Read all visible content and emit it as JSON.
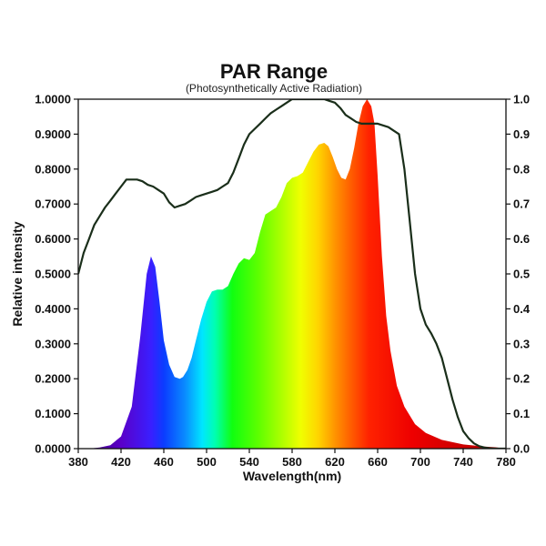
{
  "chart_data": {
    "type": "area",
    "title": "PAR Range",
    "subtitle": "(Photosynthetically Active Radiation)",
    "xlabel": "Wavelength(nm)",
    "ylabel": "Relative intensity",
    "xlim": [
      380,
      780
    ],
    "ylim": [
      0,
      1
    ],
    "grid": false,
    "x_ticks": [
      "380",
      "420",
      "460",
      "500",
      "540",
      "580",
      "620",
      "660",
      "700",
      "740",
      "780"
    ],
    "y_ticks_left": [
      "0.0000",
      "0.1000",
      "0.2000",
      "0.3000",
      "0.4000",
      "0.5000",
      "0.6000",
      "0.7000",
      "0.8000",
      "0.9000",
      "1.0000"
    ],
    "y_ticks_right": [
      "0.0",
      "0.1",
      "0.2",
      "0.3",
      "0.4",
      "0.5",
      "0.6",
      "0.7",
      "0.8",
      "0.9",
      "1.0"
    ],
    "series": [
      {
        "type": "area",
        "fill": "visible-spectrum",
        "x": [
          380,
          390,
          400,
          410,
          420,
          430,
          438,
          444,
          448,
          452,
          456,
          460,
          465,
          470,
          475,
          478,
          482,
          486,
          490,
          495,
          500,
          505,
          510,
          515,
          520,
          525,
          530,
          535,
          540,
          545,
          550,
          555,
          560,
          565,
          570,
          575,
          580,
          585,
          590,
          595,
          600,
          605,
          610,
          614,
          618,
          622,
          626,
          630,
          634,
          638,
          642,
          646,
          650,
          654,
          657,
          660,
          664,
          668,
          672,
          678,
          685,
          695,
          705,
          720,
          740,
          760,
          770,
          775,
          780
        ],
        "y": [
          0.0,
          0.0,
          0.003,
          0.01,
          0.035,
          0.12,
          0.32,
          0.5,
          0.55,
          0.52,
          0.42,
          0.31,
          0.24,
          0.205,
          0.2,
          0.205,
          0.225,
          0.26,
          0.31,
          0.37,
          0.42,
          0.45,
          0.455,
          0.455,
          0.465,
          0.5,
          0.53,
          0.545,
          0.54,
          0.56,
          0.62,
          0.67,
          0.68,
          0.69,
          0.72,
          0.76,
          0.775,
          0.78,
          0.79,
          0.82,
          0.85,
          0.87,
          0.875,
          0.865,
          0.835,
          0.8,
          0.775,
          0.77,
          0.8,
          0.86,
          0.93,
          0.98,
          1.0,
          0.98,
          0.93,
          0.78,
          0.55,
          0.38,
          0.28,
          0.18,
          0.12,
          0.07,
          0.045,
          0.025,
          0.012,
          0.006,
          0.004,
          0.002,
          0.0
        ]
      },
      {
        "type": "line",
        "color": "#1a2e1a",
        "x": [
          380,
          385,
          390,
          395,
          400,
          405,
          410,
          415,
          420,
          425,
          430,
          435,
          440,
          445,
          450,
          455,
          460,
          465,
          470,
          475,
          480,
          485,
          490,
          495,
          500,
          505,
          510,
          515,
          520,
          525,
          530,
          535,
          540,
          545,
          550,
          555,
          560,
          565,
          570,
          575,
          580,
          585,
          590,
          595,
          600,
          605,
          610,
          615,
          620,
          625,
          630,
          635,
          640,
          645,
          650,
          655,
          660,
          665,
          670,
          675,
          680,
          685,
          690,
          695,
          700,
          705,
          710,
          715,
          720,
          725,
          730,
          735,
          740,
          745,
          750,
          755,
          760,
          765,
          770,
          775,
          780
        ],
        "y": [
          0.5,
          0.56,
          0.6,
          0.64,
          0.665,
          0.69,
          0.71,
          0.73,
          0.75,
          0.77,
          0.77,
          0.77,
          0.765,
          0.755,
          0.75,
          0.74,
          0.73,
          0.705,
          0.69,
          0.695,
          0.7,
          0.71,
          0.72,
          0.725,
          0.73,
          0.735,
          0.74,
          0.75,
          0.76,
          0.79,
          0.83,
          0.87,
          0.9,
          0.915,
          0.93,
          0.945,
          0.96,
          0.97,
          0.98,
          0.99,
          1.0,
          1.0,
          1.0,
          1.0,
          1.0,
          1.0,
          1.0,
          0.995,
          0.99,
          0.975,
          0.955,
          0.945,
          0.935,
          0.93,
          0.93,
          0.93,
          0.93,
          0.925,
          0.92,
          0.91,
          0.9,
          0.8,
          0.65,
          0.5,
          0.4,
          0.355,
          0.33,
          0.3,
          0.26,
          0.2,
          0.14,
          0.09,
          0.05,
          0.03,
          0.015,
          0.007,
          0.003,
          0.001,
          0.0,
          0.0,
          0.0
        ]
      }
    ]
  }
}
